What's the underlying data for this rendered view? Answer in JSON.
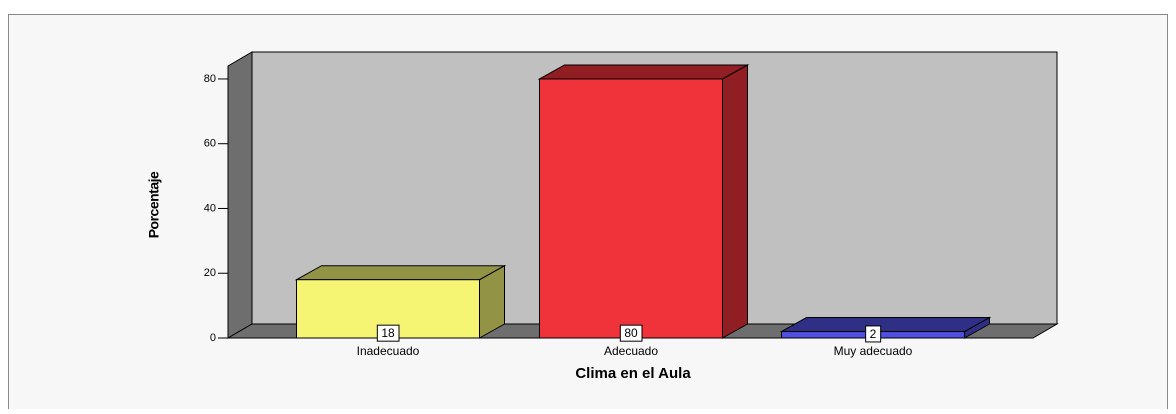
{
  "chart_data": {
    "type": "bar3d",
    "categories": [
      "Inadecuado",
      "Adecuado",
      "Muy adecuado"
    ],
    "values": [
      18,
      80,
      2
    ],
    "colors": [
      "#f5f573",
      "#f0323a",
      "#4f4fe0"
    ],
    "xlabel": "Clima en el Aula",
    "ylabel": "Porcentaje",
    "ylim": [
      0,
      84
    ],
    "yticks": [
      0,
      20,
      40,
      60,
      80
    ]
  }
}
